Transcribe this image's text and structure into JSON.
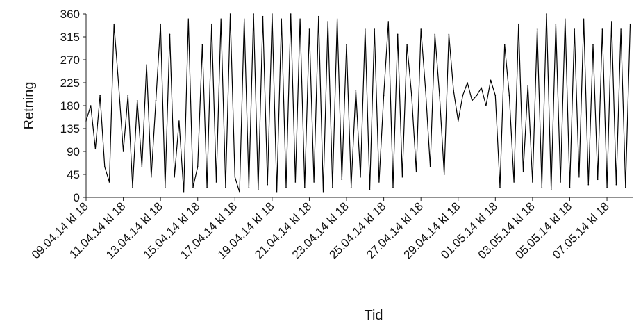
{
  "chart_data": {
    "type": "line",
    "title": "",
    "xlabel": "Tid",
    "ylabel": "Retning",
    "ylim": [
      0,
      360
    ],
    "yticks": [
      0,
      45,
      90,
      135,
      180,
      225,
      270,
      315,
      360
    ],
    "ytick_labels": [
      "0",
      "45",
      "90",
      "135",
      "180",
      "225",
      "270",
      "315",
      "360"
    ],
    "xlim": [
      "2014-04-09T18:00",
      "2014-05-09T04:00"
    ],
    "xtick_labels": [
      "09.04.14 kl 18",
      "11.04.14 kl 18",
      "13.04.14 kl 18",
      "15.04.14 kl 18",
      "17.04.14 kl 18",
      "19.04.14 kl 18",
      "21.04.14 kl 18",
      "23.04.14 kl 18",
      "25.04.14 kl 18",
      "27.04.14 kl 18",
      "29.04.14 kl 18",
      "01.05.14 kl 18",
      "03.05.14 kl 18",
      "05.05.14 kl 18",
      "07.05.14 kl 18"
    ],
    "grid": false,
    "legend": "none",
    "line_color": "#000000",
    "series": [
      {
        "x": [
          "2014-04-09T18:00",
          "2014-04-10T00:00",
          "2014-04-10T06:00",
          "2014-04-10T12:00",
          "2014-04-10T18:00",
          "2014-04-11T00:00",
          "2014-04-11T06:00",
          "2014-04-11T12:00",
          "2014-04-11T18:00",
          "2014-04-12T00:00",
          "2014-04-12T06:00",
          "2014-04-12T12:00",
          "2014-04-12T18:00",
          "2014-04-13T00:00",
          "2014-04-13T06:00",
          "2014-04-13T12:00",
          "2014-04-13T18:00",
          "2014-04-14T00:00",
          "2014-04-14T06:00",
          "2014-04-14T12:00",
          "2014-04-14T18:00",
          "2014-04-15T00:00",
          "2014-04-15T06:00",
          "2014-04-15T12:00",
          "2014-04-15T18:00",
          "2014-04-16T00:00",
          "2014-04-16T06:00",
          "2014-04-16T12:00",
          "2014-04-16T18:00",
          "2014-04-17T00:00",
          "2014-04-17T06:00",
          "2014-04-17T12:00",
          "2014-04-17T18:00",
          "2014-04-18T00:00",
          "2014-04-18T06:00",
          "2014-04-18T12:00",
          "2014-04-18T18:00",
          "2014-04-19T00:00",
          "2014-04-19T06:00",
          "2014-04-19T12:00",
          "2014-04-19T18:00",
          "2014-04-20T00:00",
          "2014-04-20T06:00",
          "2014-04-20T12:00",
          "2014-04-20T18:00",
          "2014-04-21T00:00",
          "2014-04-21T06:00",
          "2014-04-21T12:00",
          "2014-04-21T18:00",
          "2014-04-22T00:00",
          "2014-04-22T06:00",
          "2014-04-22T12:00",
          "2014-04-22T18:00",
          "2014-04-23T00:00",
          "2014-04-23T06:00",
          "2014-04-23T12:00",
          "2014-04-23T18:00",
          "2014-04-24T00:00",
          "2014-04-24T06:00",
          "2014-04-24T12:00",
          "2014-04-24T18:00",
          "2014-04-25T00:00",
          "2014-04-25T06:00",
          "2014-04-25T12:00",
          "2014-04-25T18:00",
          "2014-04-26T00:00",
          "2014-04-26T06:00",
          "2014-04-26T12:00",
          "2014-04-26T18:00",
          "2014-04-27T00:00",
          "2014-04-27T06:00",
          "2014-04-27T12:00",
          "2014-04-27T18:00",
          "2014-04-28T00:00",
          "2014-04-28T06:00",
          "2014-04-28T12:00",
          "2014-04-28T18:00",
          "2014-04-29T00:00",
          "2014-04-29T06:00",
          "2014-04-29T12:00",
          "2014-04-29T18:00",
          "2014-04-30T00:00",
          "2014-04-30T06:00",
          "2014-04-30T12:00",
          "2014-04-30T18:00",
          "2014-05-01T00:00",
          "2014-05-01T06:00",
          "2014-05-01T12:00",
          "2014-05-01T18:00",
          "2014-05-02T00:00",
          "2014-05-02T06:00",
          "2014-05-02T12:00",
          "2014-05-02T18:00",
          "2014-05-03T00:00",
          "2014-05-03T06:00",
          "2014-05-03T12:00",
          "2014-05-03T18:00",
          "2014-05-04T00:00",
          "2014-05-04T06:00",
          "2014-05-04T12:00",
          "2014-05-04T18:00",
          "2014-05-05T00:00",
          "2014-05-05T06:00",
          "2014-05-05T12:00",
          "2014-05-05T18:00",
          "2014-05-06T00:00",
          "2014-05-06T06:00",
          "2014-05-06T12:00",
          "2014-05-06T18:00",
          "2014-05-07T00:00",
          "2014-05-07T06:00",
          "2014-05-07T12:00",
          "2014-05-07T18:00",
          "2014-05-08T00:00",
          "2014-05-08T06:00",
          "2014-05-08T12:00",
          "2014-05-08T18:00",
          "2014-05-09T00:00"
        ],
        "values": [
          150,
          180,
          95,
          200,
          60,
          30,
          340,
          220,
          90,
          200,
          20,
          190,
          60,
          260,
          40,
          190,
          340,
          20,
          320,
          40,
          150,
          10,
          350,
          20,
          60,
          300,
          20,
          340,
          30,
          350,
          20,
          360,
          40,
          10,
          350,
          20,
          360,
          15,
          355,
          25,
          360,
          10,
          350,
          20,
          360,
          30,
          350,
          20,
          330,
          30,
          355,
          10,
          345,
          20,
          350,
          35,
          300,
          20,
          210,
          40,
          330,
          15,
          330,
          30,
          200,
          345,
          20,
          320,
          40,
          300,
          200,
          50,
          330,
          210,
          60,
          320,
          200,
          45,
          320,
          210,
          150,
          200,
          225,
          190,
          200,
          215,
          180,
          230,
          200,
          20,
          300,
          200,
          30,
          340,
          50,
          220,
          30,
          330,
          20,
          360,
          15,
          340,
          30,
          350,
          20,
          330,
          40,
          350,
          25,
          300,
          35,
          330,
          20,
          345,
          25,
          330,
          20,
          340
        ]
      }
    ]
  }
}
